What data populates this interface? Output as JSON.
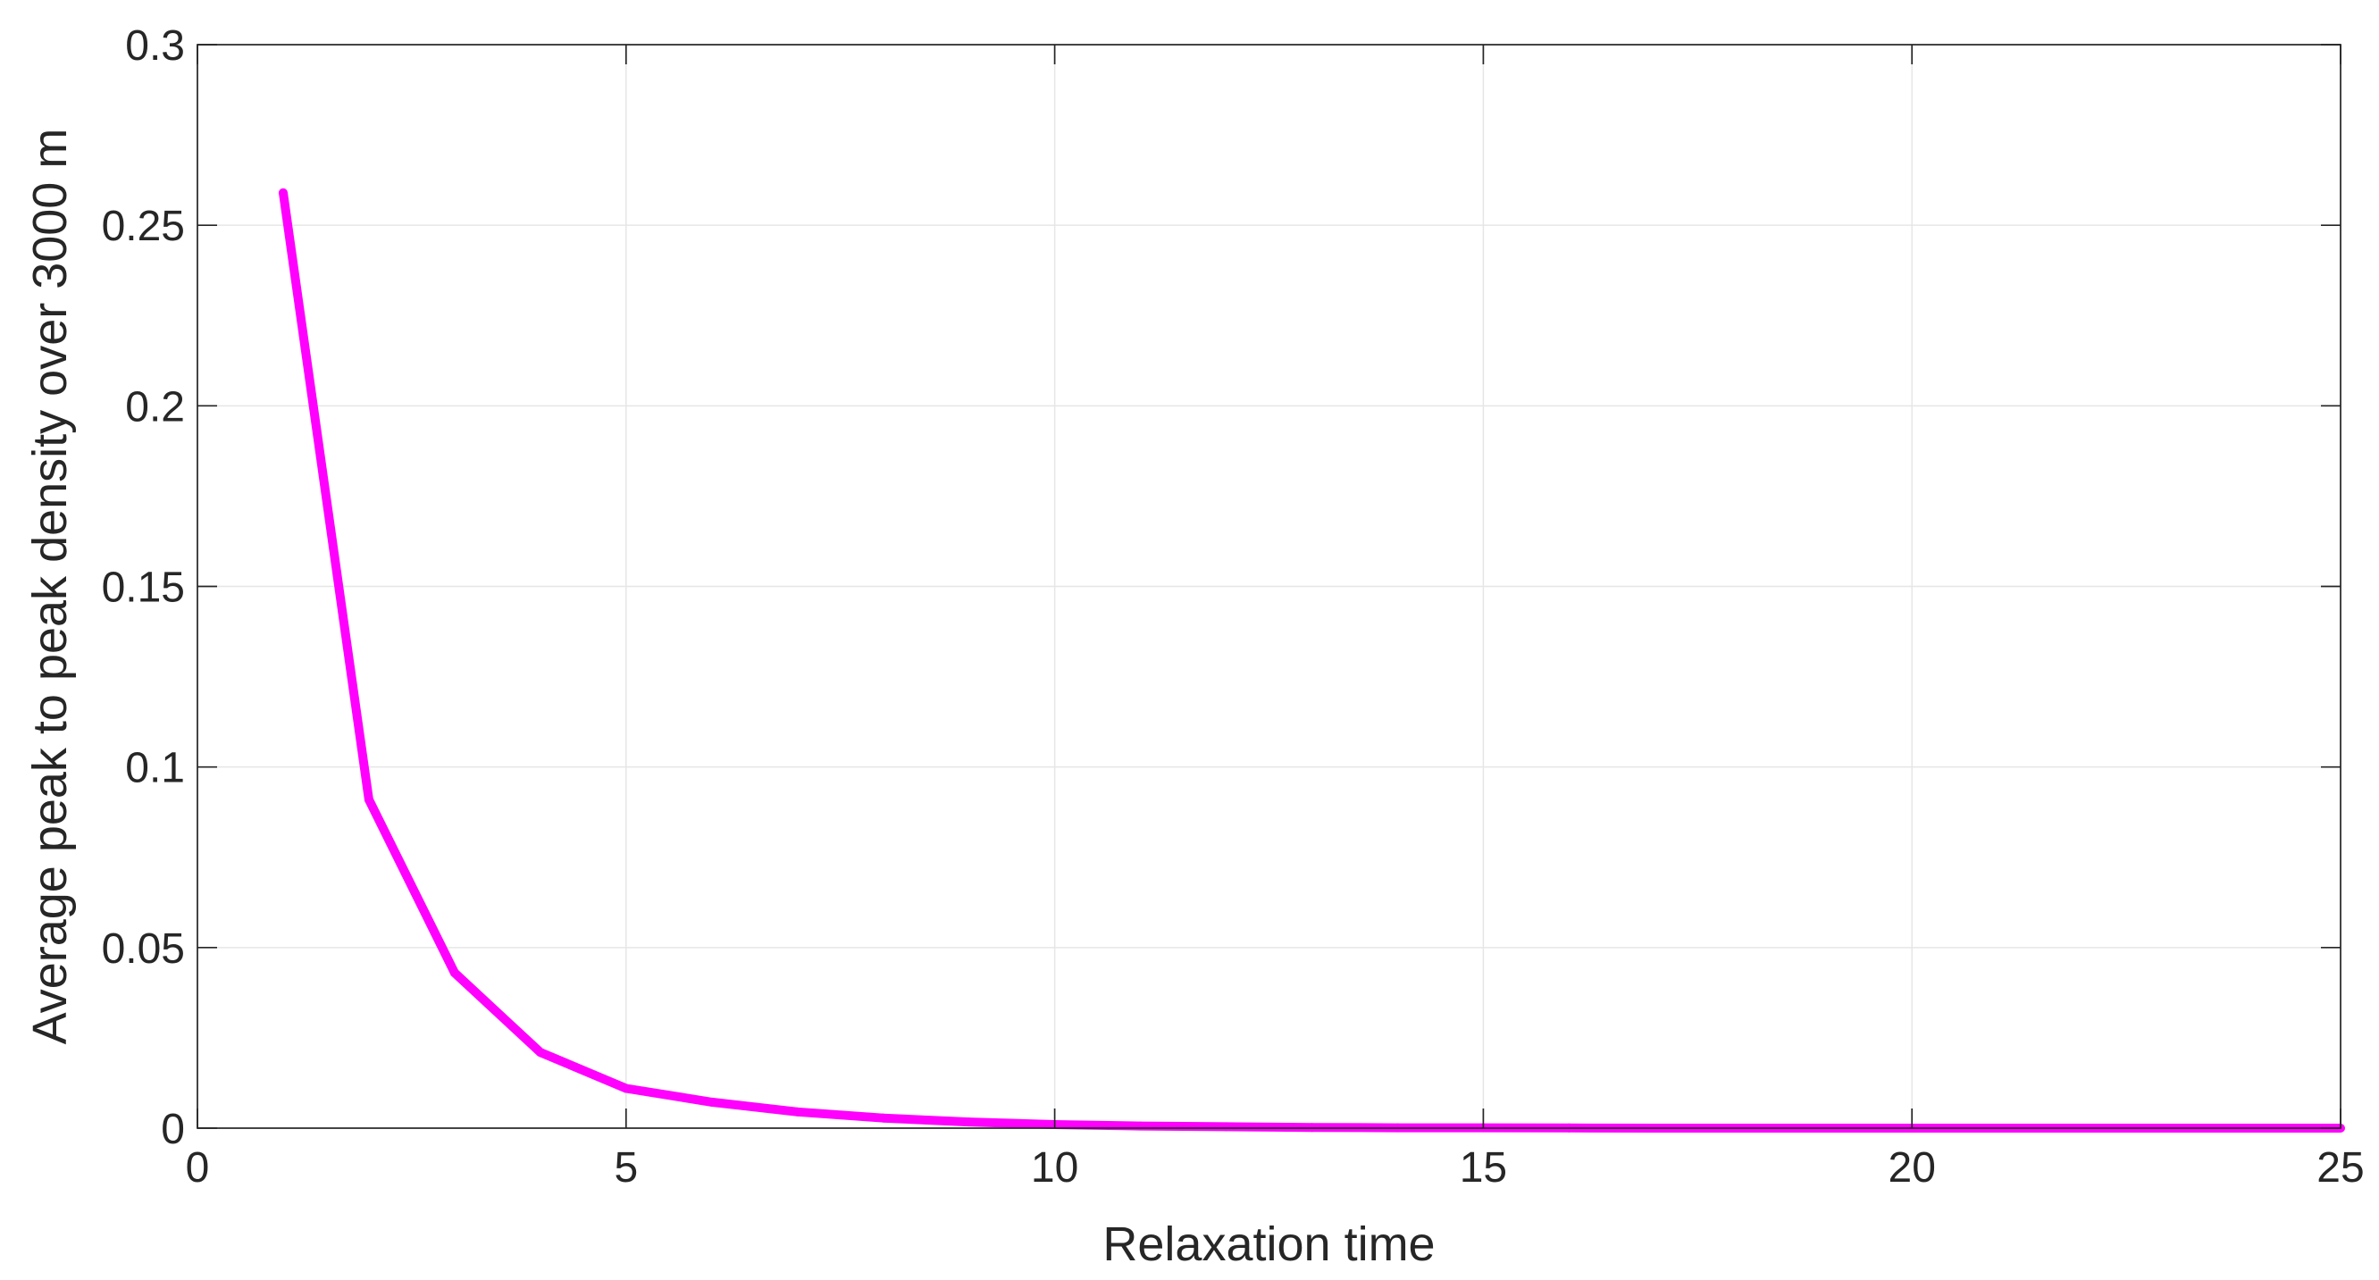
{
  "chart_data": {
    "type": "line",
    "xlabel": "Relaxation time",
    "ylabel": "Average peak to peak density over 3000 m",
    "xlim": [
      0,
      25
    ],
    "ylim": [
      0,
      0.3
    ],
    "xticks": [
      0,
      5,
      10,
      15,
      20,
      25
    ],
    "yticks": [
      0,
      0.05,
      0.1,
      0.15,
      0.2,
      0.25,
      0.3
    ],
    "xtick_labels": [
      "0",
      "5",
      "10",
      "15",
      "20",
      "25"
    ],
    "ytick_labels": [
      "0",
      "0.05",
      "0.1",
      "0.15",
      "0.2",
      "0.25",
      "0.3"
    ],
    "grid": true,
    "series": [
      {
        "color": "#ff00ff",
        "x": [
          1,
          2,
          3,
          4,
          5,
          6,
          7,
          8,
          9,
          10,
          11,
          12,
          13,
          14,
          15,
          16,
          17,
          18,
          19,
          20,
          21,
          22,
          23,
          24,
          25
        ],
        "y": [
          0.259,
          0.091,
          0.043,
          0.021,
          0.011,
          0.0072,
          0.0045,
          0.0028,
          0.0017,
          0.001,
          0.0006,
          0.0004,
          0.0002,
          0.0001,
          0.0001,
          5e-05,
          0,
          0,
          0,
          0,
          0,
          0,
          0,
          0,
          0
        ]
      }
    ]
  }
}
